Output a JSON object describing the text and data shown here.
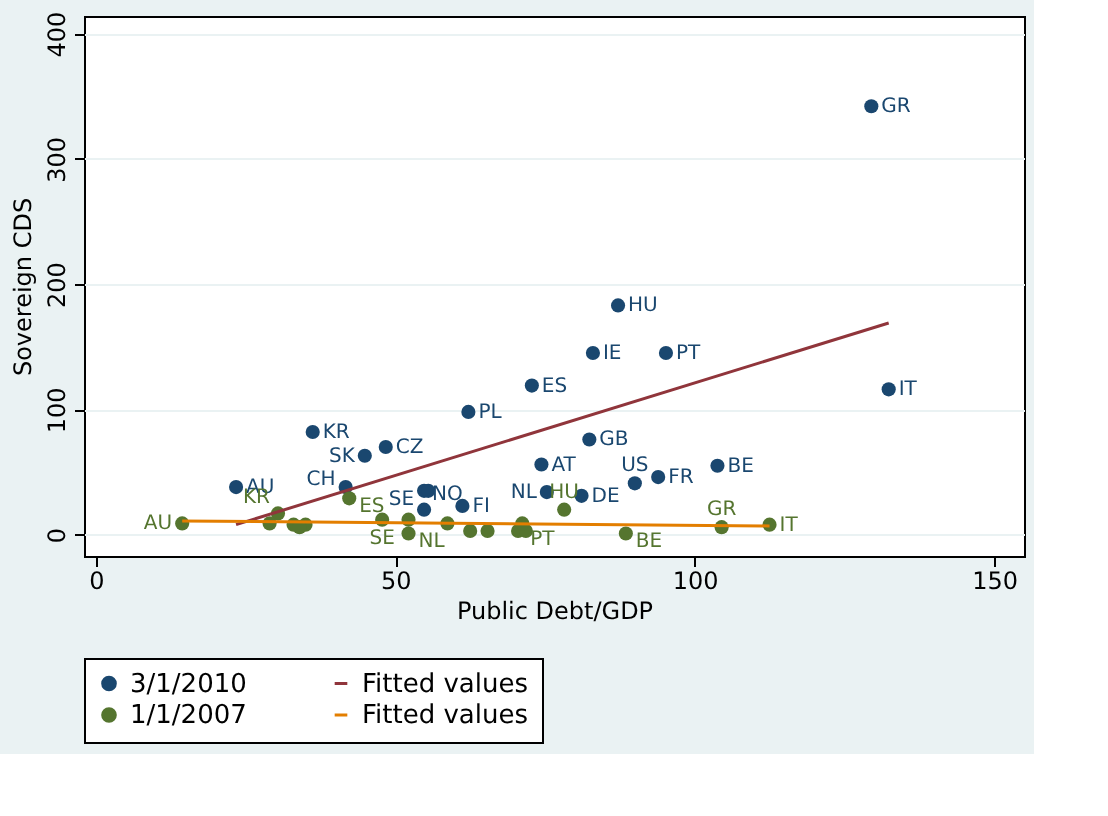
{
  "chart_data": {
    "type": "scatter",
    "xlabel": "Public Debt/GDP",
    "ylabel": "Sovereign CDS",
    "xlim": [
      -2,
      155
    ],
    "ylim": [
      -17,
      414
    ],
    "xticks": [
      0,
      50,
      100,
      150
    ],
    "yticks": [
      0,
      100,
      200,
      300,
      400
    ],
    "grid": "y",
    "legend": "bottom",
    "marker": "circle",
    "series": [
      {
        "name": "3/1/2010",
        "color": "#1a476f",
        "x": [
          129.5,
          87.2,
          83,
          95.2,
          72.8,
          132.4,
          62.2,
          36.2,
          48.4,
          44.9,
          82.4,
          74.4,
          103.8,
          23.4,
          41.7,
          54.8,
          55.5,
          54.8,
          61.2,
          75.3,
          81.1,
          90,
          93.9
        ],
        "values": [
          342,
          183,
          145,
          145,
          119,
          116,
          98,
          82,
          70,
          63,
          76,
          56,
          55,
          38,
          38,
          35,
          35,
          20,
          23,
          34,
          31,
          41,
          46
        ],
        "value_labels": [
          "GR",
          "HU",
          "IE",
          "PT",
          "ES",
          "IT",
          "PL",
          "KR",
          "CZ",
          "SK",
          "GB",
          "AT",
          "BE",
          "AU",
          "CH",
          "SE",
          null,
          "NO",
          "FI",
          "NL",
          "DE",
          "US",
          "FR"
        ]
      },
      {
        "name": "1/1/2007",
        "color": "#55752f",
        "x": [
          14.4,
          30.4,
          42.3,
          78.2,
          29,
          33,
          35,
          34,
          47.8,
          52.2,
          52.2,
          58.7,
          62.5,
          65.4,
          70.5,
          71.8,
          71.2,
          88.5,
          104.5,
          112.5
        ],
        "values": [
          9,
          17,
          29,
          20,
          9,
          8,
          8,
          6,
          12,
          12,
          1,
          9,
          3,
          3,
          3,
          3,
          9,
          1,
          6,
          8
        ],
        "value_labels": [
          "AU",
          "KR",
          "ES",
          "HU",
          null,
          null,
          null,
          null,
          "SE",
          null,
          "NL",
          null,
          null,
          null,
          null,
          null,
          "PT",
          "BE",
          "GR",
          "IT"
        ]
      },
      {
        "name": "Fitted values",
        "type": "line",
        "marker": "none",
        "color": "#90353b",
        "x": [
          23.4,
          132.4
        ],
        "values": [
          8,
          169
        ]
      },
      {
        "name": "Fitted values",
        "type": "line",
        "marker": "none",
        "color": "#e37e00",
        "x": [
          14.4,
          112.5
        ],
        "values": [
          11,
          7
        ]
      }
    ]
  }
}
